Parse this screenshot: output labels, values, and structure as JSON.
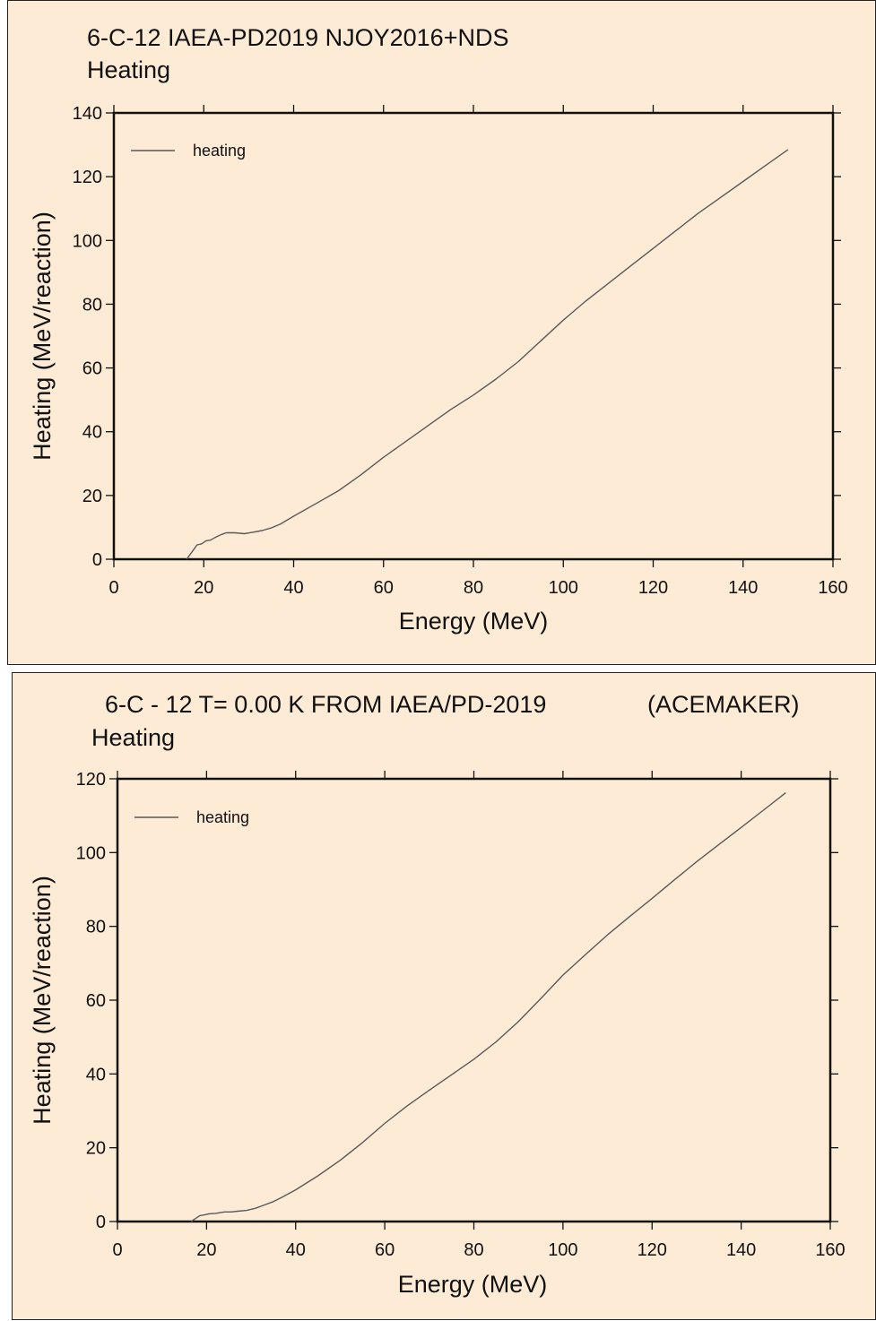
{
  "chart_data": [
    {
      "type": "line",
      "title": "6-C-12 IAEA-PD2019 NJOY2016+NDS",
      "subtitle": "Heating",
      "xlabel": "Energy (MeV)",
      "ylabel": "Heating (MeV/reaction)",
      "xlim": [
        0,
        160
      ],
      "ylim": [
        0,
        140
      ],
      "xticks": [
        0,
        20,
        40,
        60,
        80,
        100,
        120,
        140,
        160
      ],
      "yticks": [
        0,
        20,
        40,
        60,
        80,
        100,
        120,
        140
      ],
      "grid": false,
      "legend_position": "top-left",
      "series": [
        {
          "name": "heating",
          "color": "#5a5a5a",
          "x": [
            16.2,
            17.5,
            18.5,
            19.5,
            20.5,
            21.5,
            22.5,
            24,
            25,
            27,
            29,
            31,
            33,
            35,
            37,
            40,
            45,
            50,
            55,
            60,
            65,
            70,
            75,
            80,
            85,
            90,
            95,
            100,
            105,
            110,
            115,
            120,
            125,
            130,
            135,
            140,
            145,
            150
          ],
          "y": [
            0,
            2.5,
            4.5,
            4.8,
            5.8,
            6.0,
            6.8,
            7.8,
            8.3,
            8.3,
            8.0,
            8.5,
            9.0,
            9.8,
            11.0,
            13.5,
            17.5,
            21.5,
            26.5,
            32,
            37,
            42,
            47,
            51.5,
            56.5,
            62,
            68.5,
            75,
            81,
            86.5,
            92,
            97.5,
            103,
            108.5,
            113.5,
            118.5,
            123.5,
            128.5
          ]
        }
      ]
    },
    {
      "type": "line",
      "title": "6-C - 12   T= 0.00 K FROM IAEA/PD-2019",
      "title_extra": "(ACEMAKER)",
      "subtitle": "Heating",
      "xlabel": "Energy (MeV)",
      "ylabel": "Heating (MeV/reaction)",
      "xlim": [
        0,
        160
      ],
      "ylim": [
        0,
        120
      ],
      "xticks": [
        0,
        20,
        40,
        60,
        80,
        100,
        120,
        140,
        160
      ],
      "yticks": [
        0,
        20,
        40,
        60,
        80,
        100,
        120
      ],
      "grid": false,
      "legend_position": "top-left",
      "series": [
        {
          "name": "heating",
          "color": "#5a5a5a",
          "x": [
            16.5,
            17.5,
            18.5,
            19.5,
            20.5,
            22,
            24,
            25.5,
            27,
            29,
            31,
            33,
            35,
            37,
            40,
            45,
            50,
            55,
            60,
            65,
            70,
            75,
            80,
            85,
            90,
            95,
            100,
            105,
            110,
            115,
            120,
            125,
            130,
            135,
            140,
            145,
            150
          ],
          "y": [
            0,
            0.8,
            1.6,
            1.8,
            2.1,
            2.2,
            2.6,
            2.6,
            2.8,
            3.0,
            3.6,
            4.5,
            5.4,
            6.6,
            8.6,
            12.4,
            16.6,
            21.4,
            26.6,
            31.3,
            35.6,
            39.8,
            44.0,
            48.7,
            54.2,
            60.4,
            66.8,
            72.3,
            77.7,
            82.7,
            87.6,
            92.6,
            97.5,
            102.2,
            106.8,
            111.5,
            116.2
          ]
        }
      ]
    }
  ]
}
